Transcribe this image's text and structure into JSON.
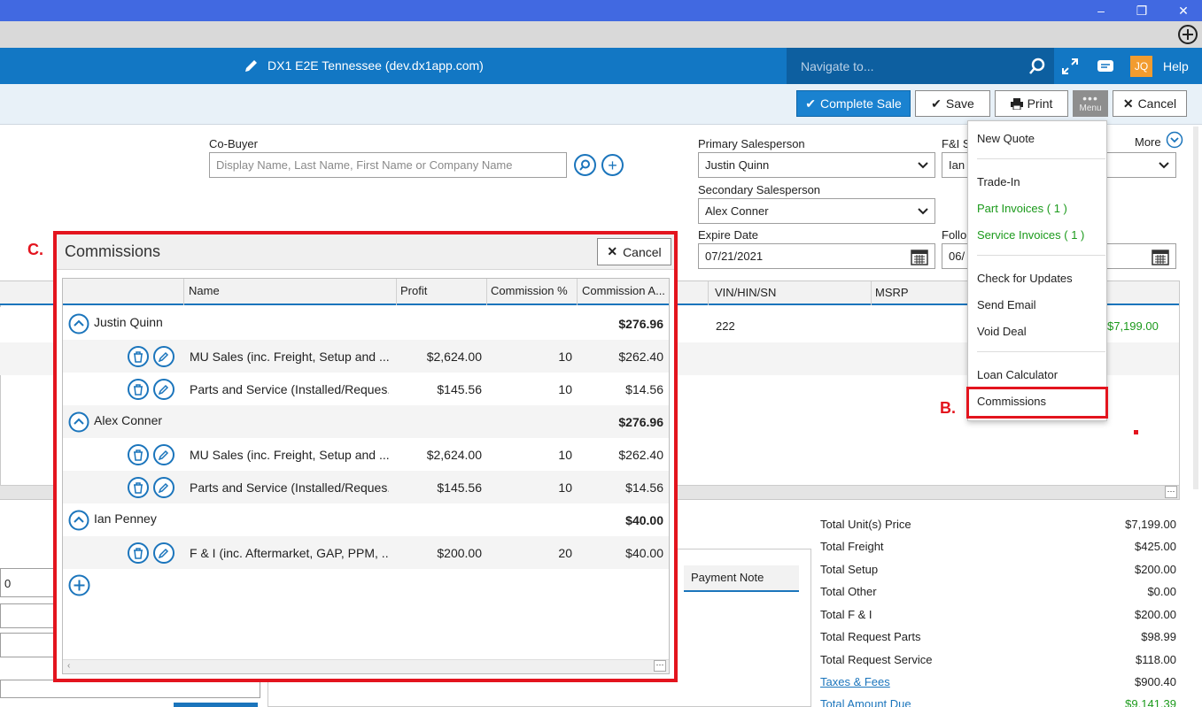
{
  "window": {
    "minimize_label": "–",
    "restore_label": "❐",
    "close_label": "✕"
  },
  "app": {
    "title": "DX1 E2E Tennessee (dev.dx1app.com)",
    "nav_placeholder": "Navigate to...",
    "user_initials": "JQ",
    "help_label": "Help"
  },
  "toolbar": {
    "complete_sale_label": "Complete Sale",
    "save_label": "Save",
    "print_label": "Print",
    "menu_label": "Menu",
    "cancel_label": "Cancel"
  },
  "form": {
    "co_buyer_label": "Co-Buyer",
    "co_buyer_placeholder": "Display Name, Last Name, First Name or Company Name",
    "primary_salesperson_label": "Primary Salesperson",
    "primary_salesperson_value": "Justin Quinn",
    "fi_label": "F&I S",
    "fi_value": "Ian",
    "more_label": "More",
    "secondary_salesperson_label": "Secondary Salesperson",
    "secondary_salesperson_value": "Alex Conner",
    "expire_date_label": "Expire Date",
    "expire_date_value": "07/21/2021",
    "followup_label": "Follo",
    "followup_value": "06/"
  },
  "deal_grid": {
    "headers": [
      "VIN/HIN/SN",
      "MSRP"
    ],
    "row1": {
      "vin": "222",
      "price": "$7,199.00"
    }
  },
  "left_panel": {
    "value": "0"
  },
  "payment": {
    "note_header": "Payment Note"
  },
  "totals": [
    {
      "label": "Total Unit(s) Price",
      "value": "$7,199.00"
    },
    {
      "label": "Total Freight",
      "value": "$425.00"
    },
    {
      "label": "Total Setup",
      "value": "$200.00"
    },
    {
      "label": "Total Other",
      "value": "$0.00"
    },
    {
      "label": "Total F & I",
      "value": "$200.00"
    },
    {
      "label": "Total Request Parts",
      "value": "$98.99"
    },
    {
      "label": "Total Request Service",
      "value": "$118.00"
    },
    {
      "label": "Taxes & Fees",
      "value": "$900.40"
    },
    {
      "label": "Total Amount Due",
      "value": "$9,141.39"
    }
  ],
  "menu": {
    "items": [
      "New Quote",
      "Trade-In",
      "Part Invoices ( 1 )",
      "Service Invoices ( 1 )",
      "Check for Updates",
      "Send Email",
      "Void Deal",
      "Loan Calculator",
      "Commissions"
    ]
  },
  "annotations": {
    "b": "B.",
    "c": "C."
  },
  "commissions": {
    "title": "Commissions",
    "cancel_label": "Cancel",
    "headers": [
      "Name",
      "Profit",
      "Commission %",
      "Commission A..."
    ],
    "groups": [
      {
        "name": "Justin Quinn",
        "total": "$276.96",
        "lines": [
          {
            "name": "MU Sales (inc. Freight, Setup and ...",
            "profit": "$2,624.00",
            "pct": "10",
            "amount": "$262.40"
          },
          {
            "name": "Parts and Service (Installed/Reques...",
            "profit": "$145.56",
            "pct": "10",
            "amount": "$14.56"
          }
        ]
      },
      {
        "name": "Alex Conner",
        "total": "$276.96",
        "lines": [
          {
            "name": "MU Sales (inc. Freight, Setup and ...",
            "profit": "$2,624.00",
            "pct": "10",
            "amount": "$262.40"
          },
          {
            "name": "Parts and Service (Installed/Reques...",
            "profit": "$145.56",
            "pct": "10",
            "amount": "$14.56"
          }
        ]
      },
      {
        "name": "Ian Penney",
        "total": "$40.00",
        "lines": [
          {
            "name": "F & I (inc. Aftermarket, GAP, PPM, ...",
            "profit": "$200.00",
            "pct": "20",
            "amount": "$40.00"
          }
        ]
      }
    ]
  },
  "colors": {
    "brand": "#1277c4",
    "highlight": "#e3141e",
    "green": "#1b9a1b"
  }
}
